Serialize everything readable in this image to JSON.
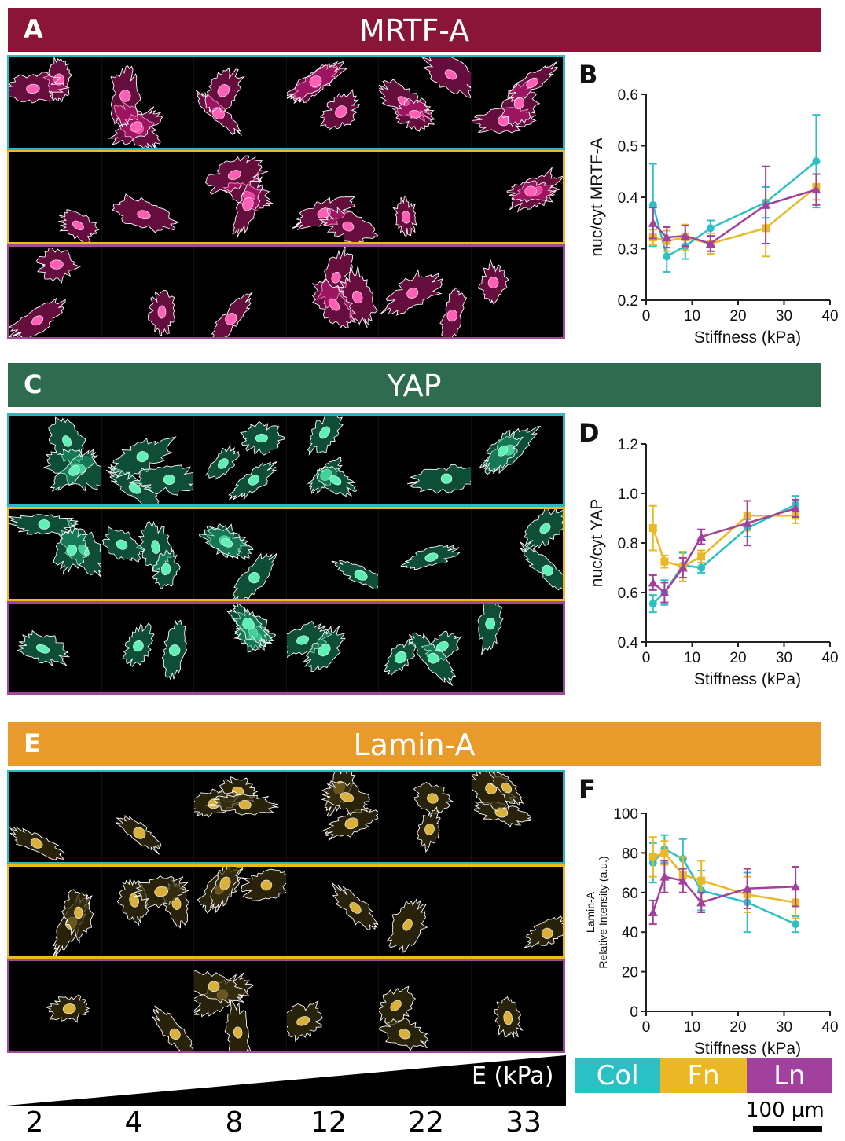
{
  "panels": [
    {
      "letter": "A",
      "title": "MRTF-A",
      "banner_color": "#8a1538",
      "cell_color": "#e0208a",
      "nucleus_color": "#ff5fb5"
    },
    {
      "letter": "C",
      "title": "YAP",
      "banner_color": "#2f6b4f",
      "cell_color": "#1faa78",
      "nucleus_color": "#5ff0b5"
    },
    {
      "letter": "E",
      "title": "Lamin-A",
      "banner_color": "#e89a2a",
      "cell_color": "#3a3010",
      "nucleus_color": "#d9b03a"
    }
  ],
  "row_colors": [
    "#2bb8c0",
    "#f0b820",
    "#a2489a"
  ],
  "legend": [
    {
      "label": "Col",
      "color": "#2bc0c4"
    },
    {
      "label": "Fn",
      "color": "#e9b824"
    },
    {
      "label": "Ln",
      "color": "#a2409e"
    }
  ],
  "stiffness_axis_label": "E (kPa)",
  "stiffness_values": [
    "2",
    "4",
    "8",
    "12",
    "22",
    "33"
  ],
  "scale_bar": "100 µm",
  "chart_data": [
    {
      "letter": "B",
      "type": "line",
      "xlabel": "Stiffness (kPa)",
      "ylabel": "nuc/cyt MRTF-A",
      "xlim": [
        0,
        40
      ],
      "ylim": [
        0.2,
        0.6
      ],
      "xticks": [
        "0",
        "10",
        "20",
        "30",
        "40"
      ],
      "yticks": [
        "0.2",
        "0.3",
        "0.4",
        "0.5",
        "0.6"
      ],
      "series": [
        {
          "name": "Col",
          "color": "#2bc0c4",
          "marker": "circle",
          "x": [
            1.5,
            4.5,
            8.5,
            14,
            26,
            37
          ],
          "y": [
            0.385,
            0.285,
            0.305,
            0.34,
            0.39,
            0.47
          ],
          "err": [
            0.08,
            0.03,
            0.025,
            0.015,
            0.03,
            0.09
          ]
        },
        {
          "name": "Fn",
          "color": "#e9b824",
          "marker": "square",
          "x": [
            1.5,
            4.5,
            8.5,
            14,
            26,
            37
          ],
          "y": [
            0.322,
            0.315,
            0.322,
            0.31,
            0.34,
            0.42
          ],
          "err": [
            0.015,
            0.02,
            0.025,
            0.02,
            0.055,
            0.025
          ]
        },
        {
          "name": "Ln",
          "color": "#a2409e",
          "marker": "triangle",
          "x": [
            1.5,
            4.5,
            8.5,
            14,
            26,
            37
          ],
          "y": [
            0.35,
            0.322,
            0.325,
            0.31,
            0.385,
            0.415
          ],
          "err": [
            0.03,
            0.02,
            0.02,
            0.015,
            0.075,
            0.03
          ]
        }
      ]
    },
    {
      "letter": "D",
      "type": "line",
      "xlabel": "Stiffness (kPa)",
      "ylabel": "nuc/cyt YAP",
      "xlim": [
        0,
        40
      ],
      "ylim": [
        0.4,
        1.2
      ],
      "xticks": [
        "0",
        "10",
        "20",
        "30",
        "40"
      ],
      "yticks": [
        "0.4",
        "0.6",
        "0.8",
        "1.0",
        "1.2"
      ],
      "series": [
        {
          "name": "Col",
          "color": "#2bc0c4",
          "marker": "circle",
          "x": [
            1.5,
            4,
            8,
            12,
            22,
            32.5
          ],
          "y": [
            0.555,
            0.6,
            0.71,
            0.7,
            0.86,
            0.955
          ],
          "err": [
            0.035,
            0.05,
            0.05,
            0.02,
            0.035,
            0.035
          ]
        },
        {
          "name": "Fn",
          "color": "#e9b824",
          "marker": "square",
          "x": [
            1.5,
            4,
            8,
            12,
            22,
            32.5
          ],
          "y": [
            0.86,
            0.725,
            0.705,
            0.745,
            0.91,
            0.91
          ],
          "err": [
            0.09,
            0.025,
            0.06,
            0.025,
            0.06,
            0.03
          ]
        },
        {
          "name": "Ln",
          "color": "#a2409e",
          "marker": "triangle",
          "x": [
            1.5,
            4,
            8,
            12,
            22,
            32.5
          ],
          "y": [
            0.64,
            0.6,
            0.7,
            0.825,
            0.88,
            0.94
          ],
          "err": [
            0.03,
            0.04,
            0.04,
            0.03,
            0.09,
            0.035
          ]
        }
      ]
    },
    {
      "letter": "F",
      "type": "line",
      "xlabel": "Stiffness (kPa)",
      "ylabel": "Relative Intensity (a.u.)",
      "ylabel2": "Lamin-A",
      "xlim": [
        0,
        40
      ],
      "ylim": [
        0,
        100
      ],
      "xticks": [
        "0",
        "10",
        "20",
        "30",
        "40"
      ],
      "yticks": [
        "0",
        "20",
        "40",
        "60",
        "80",
        "100"
      ],
      "series": [
        {
          "name": "Col",
          "color": "#2bc0c4",
          "marker": "circle",
          "x": [
            1.5,
            4,
            8,
            12,
            22,
            32.5
          ],
          "y": [
            75,
            82,
            77,
            61,
            55,
            44
          ],
          "err": [
            10,
            7,
            10,
            10,
            15,
            4
          ]
        },
        {
          "name": "Fn",
          "color": "#e9b824",
          "marker": "square",
          "x": [
            1.5,
            4,
            8,
            12,
            22,
            32.5
          ],
          "y": [
            78,
            80,
            69,
            66,
            59,
            55
          ],
          "err": [
            10,
            6,
            9,
            10,
            9,
            8
          ]
        },
        {
          "name": "Ln",
          "color": "#a2409e",
          "marker": "triangle",
          "x": [
            1.5,
            4,
            8,
            12,
            22,
            32.5
          ],
          "y": [
            50,
            68,
            66,
            55,
            62,
            63
          ],
          "err": [
            6,
            8,
            6,
            5,
            10,
            10
          ]
        }
      ]
    }
  ]
}
